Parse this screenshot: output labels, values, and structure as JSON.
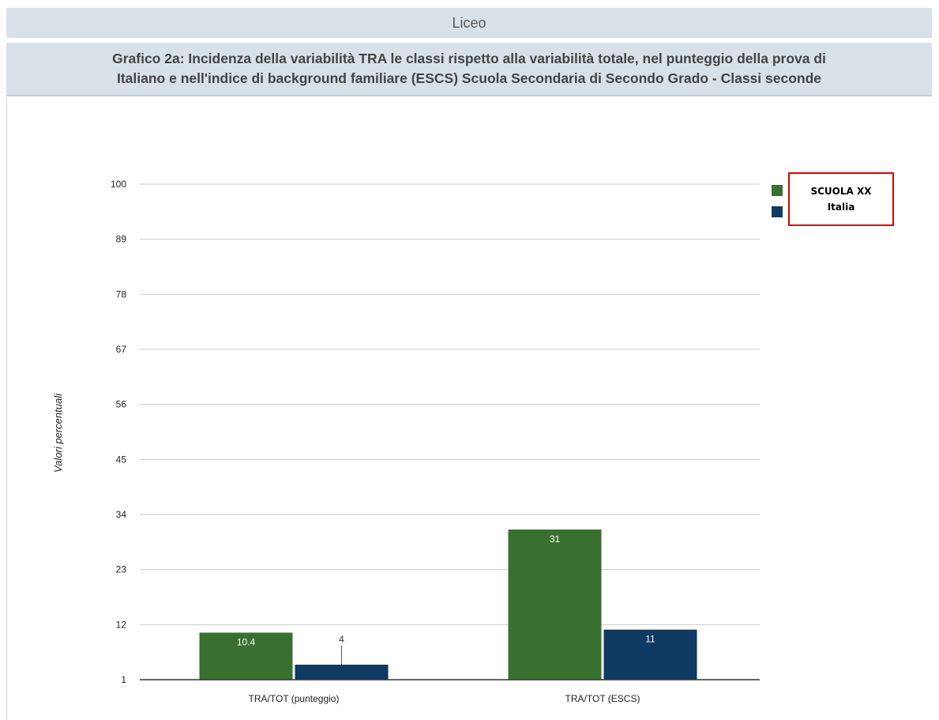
{
  "header": {
    "title": "Liceo"
  },
  "chart_header": {
    "line1": "Grafico 2a: Incidenza della variabilità TRA le classi rispetto alla variabilità totale, nel punteggio della prova di",
    "line2": "Italiano e nell'indice di background familiare (ESCS) Scuola Secondaria di Secondo Grado - Classi seconde"
  },
  "colors": {
    "scuola": "#38712f",
    "italia": "#0e3a63",
    "grid": "#cccccc"
  },
  "chart_data": {
    "type": "bar",
    "title": "Grafico 2a: Incidenza della variabilità TRA le classi rispetto alla variabilità totale, nel punteggio della prova di Italiano e nell'indice di background familiare (ESCS) Scuola Secondaria di Secondo Grado - Classi seconde",
    "xlabel": "",
    "ylabel": "Valori percentuali",
    "ylim": [
      1,
      100
    ],
    "yticks": [
      "100",
      "89",
      "78",
      "67",
      "56",
      "45",
      "34",
      "23",
      "12",
      "1"
    ],
    "categories": [
      "TRA/TOT (punteggio)",
      "TRA/TOT (ESCS)"
    ],
    "series": [
      {
        "name": "SCUOLA XX",
        "values": [
          10.4,
          31
        ],
        "labels": [
          "10.4",
          "31"
        ],
        "color": "#38712f"
      },
      {
        "name": "Italia",
        "values": [
          4,
          11
        ],
        "labels": [
          "4",
          "11"
        ],
        "color": "#0e3a63"
      }
    ],
    "grid": true,
    "legend": "top-right"
  },
  "legend": {
    "item1": "SCUOLA XX",
    "item2": "Italia"
  }
}
